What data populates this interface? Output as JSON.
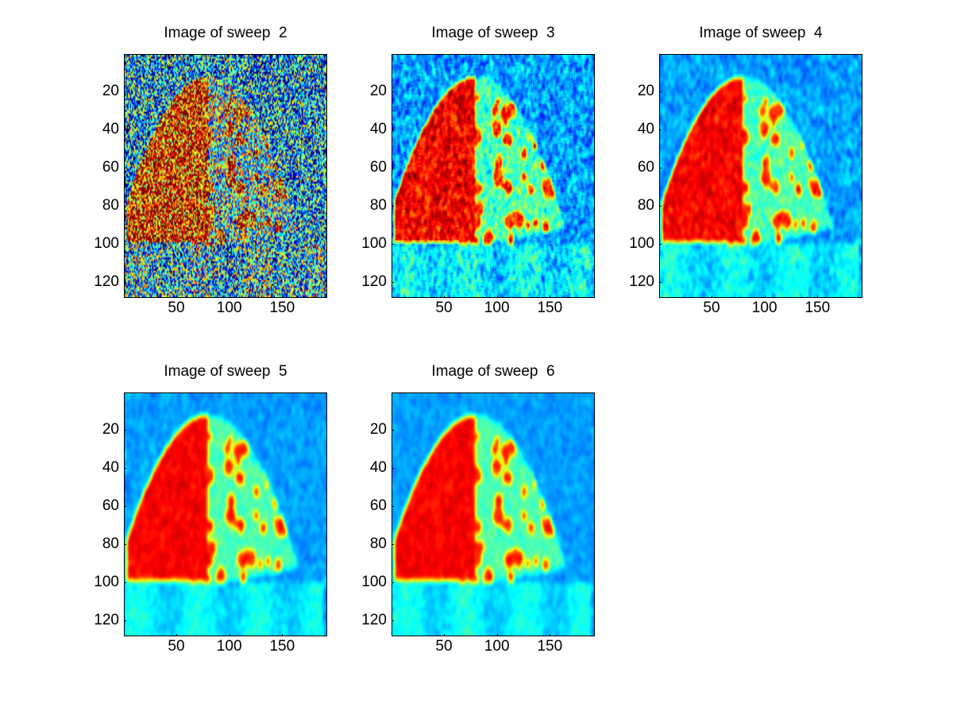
{
  "chart_data": [
    {
      "type": "heatmap",
      "title": "Image of sweep  2",
      "sweep": 2,
      "xlim": [
        0.5,
        192.5
      ],
      "ylim": [
        0.5,
        128.5
      ],
      "y_reversed": true,
      "xticks": [
        50,
        100,
        150
      ],
      "yticks": [
        20,
        40,
        60,
        80,
        100,
        120
      ],
      "colormap": "jet",
      "smoothness": 0,
      "noise": 0.55
    },
    {
      "type": "heatmap",
      "title": "Image of sweep  3",
      "sweep": 3,
      "xlim": [
        0.5,
        192.5
      ],
      "ylim": [
        0.5,
        128.5
      ],
      "y_reversed": true,
      "xticks": [
        50,
        100,
        150
      ],
      "yticks": [
        20,
        40,
        60,
        80,
        100,
        120
      ],
      "colormap": "jet",
      "smoothness": 1,
      "noise": 0.35
    },
    {
      "type": "heatmap",
      "title": "Image of sweep  4",
      "sweep": 4,
      "xlim": [
        0.5,
        192.5
      ],
      "ylim": [
        0.5,
        128.5
      ],
      "y_reversed": true,
      "xticks": [
        50,
        100,
        150
      ],
      "yticks": [
        20,
        40,
        60,
        80,
        100,
        120
      ],
      "colormap": "jet",
      "smoothness": 2,
      "noise": 0.25
    },
    {
      "type": "heatmap",
      "title": "Image of sweep  5",
      "sweep": 5,
      "xlim": [
        0.5,
        192.5
      ],
      "ylim": [
        0.5,
        128.5
      ],
      "y_reversed": true,
      "xticks": [
        50,
        100,
        150
      ],
      "yticks": [
        20,
        40,
        60,
        80,
        100,
        120
      ],
      "colormap": "jet",
      "smoothness": 3,
      "noise": 0.18
    },
    {
      "type": "heatmap",
      "title": "Image of sweep  6",
      "sweep": 6,
      "xlim": [
        0.5,
        192.5
      ],
      "ylim": [
        0.5,
        128.5
      ],
      "y_reversed": true,
      "xticks": [
        50,
        100,
        150
      ],
      "yticks": [
        20,
        40,
        60,
        80,
        100,
        120
      ],
      "colormap": "jet",
      "smoothness": 3,
      "noise": 0.16
    }
  ]
}
